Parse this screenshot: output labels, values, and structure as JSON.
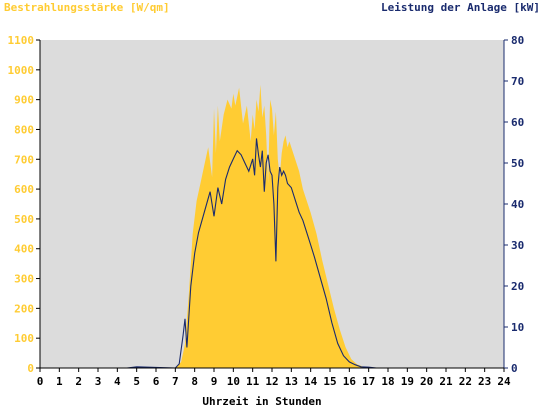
{
  "chart_data": {
    "type": "area",
    "left_axis_title": "Bestrahlungsstärke [W/qm]",
    "right_axis_title": "Leistung der Anlage [kW]",
    "xlabel": "Uhrzeit in Stunden",
    "x_ticks": [
      "0",
      "1",
      "2",
      "3",
      "4",
      "5",
      "6",
      "7",
      "8",
      "9",
      "10",
      "11",
      "12",
      "13",
      "14",
      "15",
      "16",
      "17",
      "18",
      "19",
      "20",
      "21",
      "22",
      "23",
      "24"
    ],
    "y_left_ticks": [
      "0",
      "100",
      "200",
      "300",
      "400",
      "500",
      "600",
      "700",
      "800",
      "900",
      "1000",
      "1100"
    ],
    "y_right_ticks": [
      "0",
      "10",
      "20",
      "30",
      "40",
      "50",
      "60",
      "70",
      "80"
    ],
    "xlim": [
      0,
      24
    ],
    "ylim_left": [
      0,
      1100
    ],
    "ylim_right": [
      0,
      80
    ],
    "grid": false,
    "colors": {
      "plot_bg": "#dcdcdc",
      "irradiance_fill": "#ffcc33",
      "power_line": "#1a2b6e",
      "left_axis": "#ffcc33",
      "right_axis": "#1a2b6e"
    },
    "series": [
      {
        "axis": "left",
        "style": "area",
        "x": [
          0,
          7.0,
          7.3,
          7.5,
          7.7,
          7.9,
          8.1,
          8.3,
          8.5,
          8.7,
          8.9,
          9.0,
          9.1,
          9.2,
          9.3,
          9.5,
          9.7,
          9.9,
          10.0,
          10.1,
          10.3,
          10.5,
          10.7,
          10.9,
          11.0,
          11.1,
          11.2,
          11.3,
          11.4,
          11.5,
          11.6,
          11.7,
          11.8,
          11.9,
          12.0,
          12.1,
          12.2,
          12.3,
          12.4,
          12.5,
          12.6,
          12.7,
          12.8,
          12.9,
          13.0,
          13.2,
          13.4,
          13.6,
          13.8,
          14.0,
          14.3,
          14.6,
          14.9,
          15.2,
          15.5,
          15.8,
          16.1,
          16.4,
          16.7,
          17.0,
          17.3,
          17.6,
          24
        ],
        "values": [
          0,
          0,
          20,
          80,
          250,
          450,
          560,
          620,
          680,
          740,
          640,
          870,
          720,
          880,
          760,
          850,
          900,
          870,
          920,
          880,
          940,
          820,
          880,
          760,
          850,
          800,
          900,
          860,
          950,
          840,
          880,
          780,
          620,
          900,
          870,
          780,
          860,
          700,
          640,
          720,
          760,
          780,
          740,
          760,
          740,
          700,
          660,
          600,
          560,
          520,
          450,
          360,
          280,
          200,
          130,
          70,
          30,
          12,
          5,
          2,
          0,
          0,
          0
        ]
      },
      {
        "axis": "right",
        "style": "line",
        "x": [
          0,
          4.5,
          5.0,
          7.0,
          7.2,
          7.4,
          7.5,
          7.6,
          7.8,
          8.0,
          8.2,
          8.5,
          8.8,
          9.0,
          9.2,
          9.4,
          9.6,
          9.8,
          10.0,
          10.2,
          10.4,
          10.6,
          10.8,
          11.0,
          11.1,
          11.2,
          11.3,
          11.4,
          11.5,
          11.6,
          11.7,
          11.8,
          11.9,
          12.0,
          12.1,
          12.2,
          12.3,
          12.4,
          12.5,
          12.6,
          12.7,
          12.8,
          13.0,
          13.2,
          13.4,
          13.6,
          13.8,
          14.0,
          14.2,
          14.5,
          14.8,
          15.1,
          15.4,
          15.7,
          16.0,
          16.3,
          16.6,
          17.0,
          17.4,
          17.8,
          18.0,
          24
        ],
        "values": [
          0,
          0,
          0.3,
          0,
          1,
          8,
          12,
          5,
          20,
          28,
          33,
          38,
          43,
          37,
          44,
          40,
          46,
          49,
          51,
          53,
          52,
          50,
          48,
          51,
          47,
          56,
          52,
          49,
          53,
          43,
          50,
          52,
          48,
          47,
          40,
          26,
          44,
          49,
          47,
          48,
          47,
          45,
          44,
          41,
          38,
          36,
          33,
          30,
          27,
          22,
          17,
          11,
          6,
          3,
          1.5,
          0.8,
          0.3,
          0.2,
          0,
          0,
          0,
          0
        ]
      }
    ]
  }
}
